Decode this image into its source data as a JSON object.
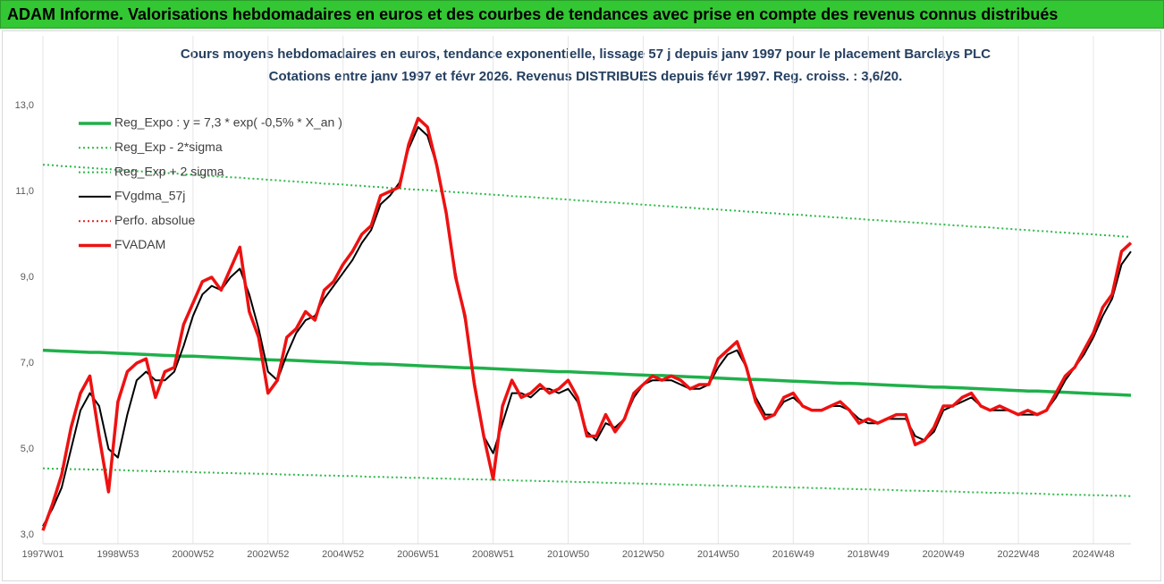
{
  "chart_data": {
    "type": "line",
    "title": "ADAM Informe. Valorisations hebdomadaires en euros et des courbes de tendances avec prise en compte des revenus connus distribués",
    "subtitle": [
      "Cours moyens hebdomadaires en euros, tendance exponentielle, lissage 57 j depuis janv 1997 pour le placement Barclays PLC",
      "Cotations entre janv 1997 et févr 2026. Revenus DISTRIBUES depuis févr 1997.  Reg. croiss. : 3,6/20."
    ],
    "categories": [
      "1997W01",
      null,
      null,
      null,
      null,
      null,
      null,
      null,
      "1998W53",
      null,
      null,
      null,
      null,
      null,
      null,
      null,
      "2000W52",
      null,
      null,
      null,
      null,
      null,
      null,
      null,
      "2002W52",
      null,
      null,
      null,
      null,
      null,
      null,
      null,
      "2004W52",
      null,
      null,
      null,
      null,
      null,
      null,
      null,
      "2006W51",
      null,
      null,
      null,
      null,
      null,
      null,
      null,
      "2008W51",
      null,
      null,
      null,
      null,
      null,
      null,
      null,
      "2010W50",
      null,
      null,
      null,
      null,
      null,
      null,
      null,
      "2012W50",
      null,
      null,
      null,
      null,
      null,
      null,
      null,
      "2014W50",
      null,
      null,
      null,
      null,
      null,
      null,
      null,
      "2016W49",
      null,
      null,
      null,
      null,
      null,
      null,
      null,
      "2018W49",
      null,
      null,
      null,
      null,
      null,
      null,
      null,
      "2020W49",
      null,
      null,
      null,
      null,
      null,
      null,
      null,
      "2022W48",
      null,
      null,
      null,
      null,
      null,
      null,
      null,
      "2024W48",
      null,
      null,
      null,
      null
    ],
    "ylim": [
      3,
      13
    ],
    "yticks": [
      {
        "value": 3,
        "label": "3,0"
      },
      {
        "value": 5,
        "label": "5,0"
      },
      {
        "value": 7,
        "label": "7,0"
      },
      {
        "value": 9,
        "label": "9,0"
      },
      {
        "value": 11,
        "label": "11,0"
      },
      {
        "value": 13,
        "label": "13,0"
      }
    ],
    "grid": "x",
    "legend": "upper left",
    "series": [
      {
        "name": "Reg_Expo : y = 7,3 * exp( -0,5% *  X_an )",
        "color": "#1fb04a",
        "style": "solid",
        "values": [
          7.3,
          7.29,
          7.28,
          7.27,
          7.26,
          7.25,
          7.25,
          7.24,
          7.23,
          7.22,
          7.21,
          7.2,
          7.19,
          7.18,
          7.17,
          7.16,
          7.16,
          7.15,
          7.14,
          7.13,
          7.12,
          7.11,
          7.1,
          7.09,
          7.08,
          7.07,
          7.07,
          7.06,
          7.05,
          7.04,
          7.03,
          7.02,
          7.01,
          7.0,
          6.99,
          6.98,
          6.98,
          6.97,
          6.96,
          6.95,
          6.94,
          6.93,
          6.92,
          6.91,
          6.9,
          6.89,
          6.89,
          6.88,
          6.87,
          6.86,
          6.85,
          6.84,
          6.83,
          6.82,
          6.81,
          6.8,
          6.8,
          6.79,
          6.78,
          6.77,
          6.76,
          6.75,
          6.74,
          6.73,
          6.72,
          6.71,
          6.71,
          6.7,
          6.69,
          6.68,
          6.67,
          6.66,
          6.65,
          6.64,
          6.63,
          6.62,
          6.62,
          6.61,
          6.6,
          6.59,
          6.58,
          6.57,
          6.56,
          6.55,
          6.54,
          6.53,
          6.53,
          6.52,
          6.51,
          6.5,
          6.49,
          6.48,
          6.47,
          6.46,
          6.45,
          6.44,
          6.44,
          6.43,
          6.42,
          6.41,
          6.4,
          6.39,
          6.38,
          6.37,
          6.36,
          6.35,
          6.35,
          6.34,
          6.33,
          6.32,
          6.31,
          6.3,
          6.29,
          6.28,
          6.27,
          6.26,
          6.25
        ]
      },
      {
        "name": "Reg_Exp - 2*sigma",
        "color": "#2db84a",
        "style": "dotted",
        "values": [
          4.55,
          4.54,
          4.54,
          4.53,
          4.53,
          4.52,
          4.52,
          4.51,
          4.51,
          4.5,
          4.49,
          4.49,
          4.48,
          4.48,
          4.47,
          4.47,
          4.46,
          4.45,
          4.45,
          4.44,
          4.44,
          4.43,
          4.43,
          4.42,
          4.42,
          4.41,
          4.4,
          4.4,
          4.39,
          4.39,
          4.38,
          4.38,
          4.37,
          4.37,
          4.36,
          4.35,
          4.35,
          4.34,
          4.34,
          4.33,
          4.33,
          4.32,
          4.31,
          4.31,
          4.3,
          4.3,
          4.29,
          4.29,
          4.28,
          4.28,
          4.27,
          4.26,
          4.26,
          4.25,
          4.25,
          4.24,
          4.24,
          4.23,
          4.23,
          4.22,
          4.21,
          4.21,
          4.2,
          4.2,
          4.19,
          4.19,
          4.18,
          4.17,
          4.17,
          4.16,
          4.16,
          4.15,
          4.15,
          4.14,
          4.14,
          4.13,
          4.12,
          4.12,
          4.11,
          4.11,
          4.1,
          4.1,
          4.09,
          4.09,
          4.08,
          4.07,
          4.07,
          4.06,
          4.06,
          4.05,
          4.05,
          4.04,
          4.03,
          4.03,
          4.02,
          4.02,
          4.01,
          4.01,
          4.0,
          3.99,
          3.99,
          3.98,
          3.98,
          3.97,
          3.97,
          3.96,
          3.96,
          3.95,
          3.94,
          3.94,
          3.93,
          3.93,
          3.92,
          3.92,
          3.91,
          3.91,
          3.9
        ]
      },
      {
        "name": "Reg_Exp + 2 sigma",
        "color": "#2db84a",
        "style": "dotted",
        "values": [
          11.62,
          11.61,
          11.59,
          11.58,
          11.56,
          11.55,
          11.53,
          11.52,
          11.5,
          11.49,
          11.47,
          11.46,
          11.45,
          11.43,
          11.42,
          11.4,
          11.39,
          11.37,
          11.36,
          11.34,
          11.33,
          11.32,
          11.3,
          11.29,
          11.27,
          11.26,
          11.24,
          11.23,
          11.21,
          11.2,
          11.18,
          11.17,
          11.16,
          11.14,
          11.13,
          11.11,
          11.1,
          11.08,
          11.07,
          11.05,
          11.04,
          11.03,
          11.01,
          11.0,
          10.98,
          10.97,
          10.95,
          10.94,
          10.92,
          10.91,
          10.89,
          10.88,
          10.87,
          10.85,
          10.84,
          10.82,
          10.81,
          10.79,
          10.78,
          10.76,
          10.75,
          10.74,
          10.72,
          10.71,
          10.69,
          10.68,
          10.66,
          10.65,
          10.63,
          10.62,
          10.6,
          10.59,
          10.58,
          10.56,
          10.55,
          10.53,
          10.52,
          10.5,
          10.49,
          10.47,
          10.46,
          10.45,
          10.43,
          10.42,
          10.4,
          10.39,
          10.37,
          10.36,
          10.34,
          10.33,
          10.31,
          10.3,
          10.29,
          10.27,
          10.26,
          10.24,
          10.23,
          10.21,
          10.2,
          10.18,
          10.17,
          10.16,
          10.14,
          10.13,
          10.11,
          10.1,
          10.08,
          10.07,
          10.05,
          10.04,
          10.02,
          10.01,
          10.0,
          9.98,
          9.97,
          9.95,
          9.94
        ]
      },
      {
        "name": "FVgdma_57j",
        "color": "#000000",
        "style": "solid",
        "values": [
          3.2,
          3.6,
          4.1,
          5.0,
          5.9,
          6.3,
          6.0,
          5.0,
          4.8,
          5.8,
          6.6,
          6.8,
          6.6,
          6.6,
          6.8,
          7.4,
          8.1,
          8.6,
          8.8,
          8.7,
          9.0,
          9.2,
          8.6,
          7.8,
          6.8,
          6.6,
          7.2,
          7.7,
          8.0,
          8.1,
          8.5,
          8.8,
          9.1,
          9.4,
          9.8,
          10.1,
          10.7,
          10.9,
          11.2,
          12.0,
          12.5,
          12.3,
          11.6,
          10.5,
          9.1,
          8.0,
          6.6,
          5.3,
          4.9,
          5.6,
          6.3,
          6.3,
          6.2,
          6.4,
          6.4,
          6.3,
          6.4,
          6.1,
          5.4,
          5.2,
          5.6,
          5.5,
          5.7,
          6.2,
          6.5,
          6.6,
          6.6,
          6.6,
          6.5,
          6.4,
          6.4,
          6.5,
          6.9,
          7.2,
          7.3,
          6.9,
          6.2,
          5.8,
          5.8,
          6.1,
          6.2,
          6.0,
          5.9,
          5.9,
          6.0,
          6.0,
          5.9,
          5.7,
          5.6,
          5.6,
          5.7,
          5.7,
          5.7,
          5.3,
          5.2,
          5.4,
          5.9,
          6.0,
          6.1,
          6.2,
          6.0,
          5.9,
          5.9,
          5.9,
          5.8,
          5.8,
          5.8,
          5.9,
          6.2,
          6.6,
          6.9,
          7.2,
          7.6,
          8.1,
          8.5,
          9.3,
          9.6
        ]
      },
      {
        "name": "Perfo. absolue",
        "color": "#e02020",
        "style": "dotted"
      },
      {
        "name": "FVADAM",
        "color": "#ee1111",
        "style": "solid",
        "values": [
          3.1,
          3.7,
          4.4,
          5.5,
          6.3,
          6.7,
          5.3,
          4.0,
          6.1,
          6.8,
          7.0,
          7.1,
          6.2,
          6.8,
          6.9,
          7.9,
          8.4,
          8.9,
          9.0,
          8.7,
          9.2,
          9.7,
          8.2,
          7.6,
          6.3,
          6.6,
          7.6,
          7.8,
          8.2,
          8.0,
          8.7,
          8.9,
          9.3,
          9.6,
          10.0,
          10.2,
          10.9,
          11.0,
          11.1,
          12.1,
          12.7,
          12.5,
          11.6,
          10.5,
          9.0,
          8.1,
          6.5,
          5.3,
          4.3,
          6.0,
          6.6,
          6.2,
          6.3,
          6.5,
          6.3,
          6.4,
          6.6,
          6.2,
          5.3,
          5.3,
          5.8,
          5.4,
          5.7,
          6.3,
          6.5,
          6.7,
          6.6,
          6.7,
          6.6,
          6.4,
          6.5,
          6.5,
          7.1,
          7.3,
          7.5,
          6.9,
          6.1,
          5.7,
          5.8,
          6.2,
          6.3,
          6.0,
          5.9,
          5.9,
          6.0,
          6.1,
          5.9,
          5.6,
          5.7,
          5.6,
          5.7,
          5.8,
          5.8,
          5.1,
          5.2,
          5.5,
          6.0,
          6.0,
          6.2,
          6.3,
          6.0,
          5.9,
          6.0,
          5.9,
          5.8,
          5.9,
          5.8,
          5.9,
          6.3,
          6.7,
          6.9,
          7.3,
          7.7,
          8.3,
          8.6,
          9.6,
          9.8
        ]
      }
    ]
  }
}
